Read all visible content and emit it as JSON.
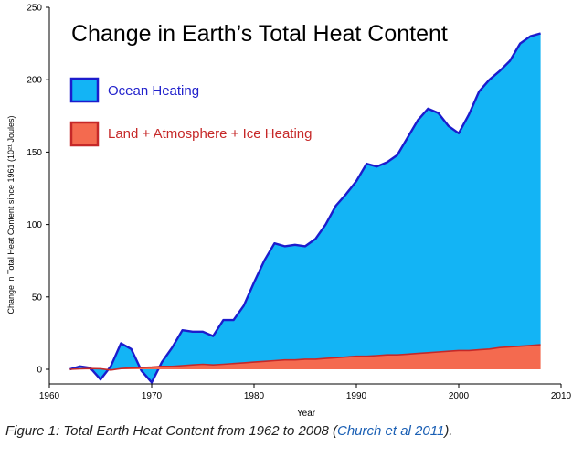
{
  "chart_data": {
    "type": "area",
    "title": "Change in Earth’s Total Heat Content",
    "xlabel": "Year",
    "ylabel": "Change in Total Heat Content since 1961 (10²¹ Joules)",
    "xlim": [
      1960,
      2010
    ],
    "ylim": [
      -10,
      250
    ],
    "x_ticks": [
      "1960",
      "1970",
      "1980",
      "1990",
      "2000",
      "2010"
    ],
    "y_ticks": [
      "0",
      "50",
      "100",
      "150",
      "200",
      "250"
    ],
    "legend_position": "top-left",
    "colors": {
      "ocean_fill": "#13b4f5",
      "ocean_stroke": "#1c1ccd",
      "land_fill": "#f46a4f",
      "land_stroke": "#c62828",
      "ocean_legend_text": "#2222cc",
      "land_legend_text": "#c62828"
    },
    "x": [
      1962,
      1963,
      1964,
      1965,
      1966,
      1967,
      1968,
      1969,
      1970,
      1971,
      1972,
      1973,
      1974,
      1975,
      1976,
      1977,
      1978,
      1979,
      1980,
      1981,
      1982,
      1983,
      1984,
      1985,
      1986,
      1987,
      1988,
      1989,
      1990,
      1991,
      1992,
      1993,
      1994,
      1995,
      1996,
      1997,
      1998,
      1999,
      2000,
      2001,
      2002,
      2003,
      2004,
      2005,
      2006,
      2007,
      2008
    ],
    "series": [
      {
        "name": "Land + Atmosphere + Ice Heating",
        "values": [
          0,
          0.3,
          0.5,
          0.4,
          -0.5,
          0.5,
          1,
          1.2,
          1.5,
          2,
          2,
          2.5,
          3,
          3.5,
          3,
          3.5,
          4,
          4.5,
          5,
          5.5,
          6,
          6.5,
          6.5,
          7,
          7,
          7.5,
          8,
          8.5,
          9,
          9,
          9.5,
          10,
          10,
          10.5,
          11,
          11.5,
          12,
          12.5,
          13,
          13,
          13.5,
          14,
          15,
          15.5,
          16,
          16.5,
          17
        ]
      },
      {
        "name": "Ocean Heating",
        "values": [
          0,
          2,
          1,
          -7,
          2,
          18,
          14,
          -1,
          -9,
          5,
          15,
          27,
          26,
          26,
          23,
          34,
          34,
          44,
          60,
          75,
          87,
          85,
          86,
          85,
          90,
          100,
          113,
          121,
          130,
          142,
          140,
          143,
          148,
          160,
          172,
          180,
          177,
          168,
          163,
          176,
          192,
          200,
          206,
          213,
          225,
          230,
          232
        ]
      }
    ]
  },
  "caption": {
    "prefix": "Figure 1: Total Earth Heat Content from 1962 to 2008 (",
    "citation": "Church et al 2011",
    "suffix": ")."
  }
}
